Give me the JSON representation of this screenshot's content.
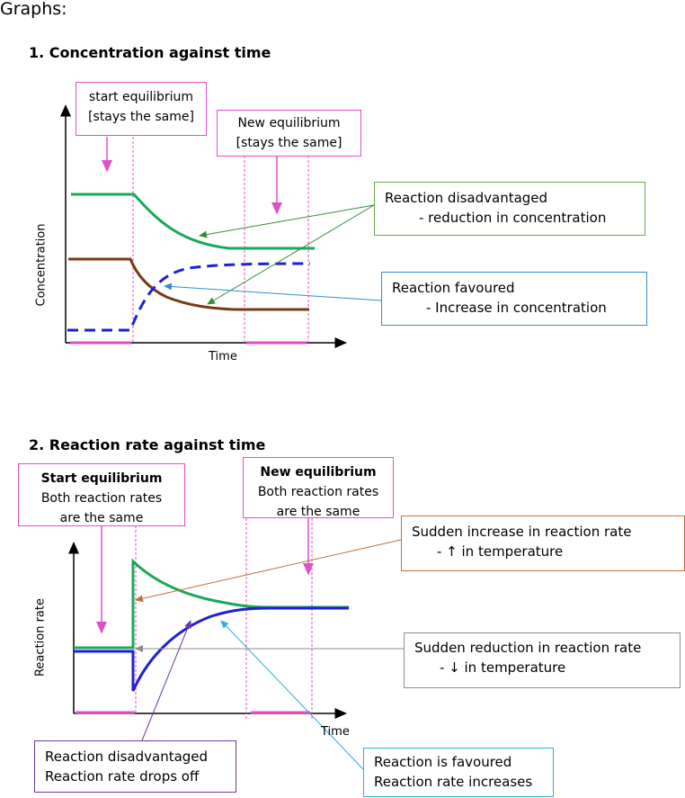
{
  "heading": "Graphs:",
  "graph1": {
    "title": "1. Concentration against time",
    "xlabel": "Time",
    "ylabel": "Concentration",
    "box_start": [
      "start equilibrium",
      "[stays the same]"
    ],
    "box_new": [
      "New equilibrium",
      "[stays the same]"
    ],
    "box_disadv": {
      "line1": "Reaction disadvantaged",
      "line2": "-    reduction in concentration"
    },
    "box_fav": {
      "line1": "Reaction favoured",
      "line2": "-    Increase in concentration"
    }
  },
  "graph2": {
    "title": "2. Reaction rate against time",
    "xlabel": "Time",
    "ylabel": "Reaction rate",
    "box_start": {
      "title": "Start equilibrium",
      "line1": "Both reaction rates",
      "line2": "are the same"
    },
    "box_new": {
      "title": "New equilibrium",
      "line1": "Both reaction rates",
      "line2": "are the same"
    },
    "box_increase": {
      "line1": "Sudden increase in reaction rate",
      "line2": "-    ↑ in temperature"
    },
    "box_reduction": {
      "line1": "Sudden reduction in reaction rate",
      "line2": "-    ↓ in temperature"
    },
    "box_disadv": {
      "line1": "Reaction disadvantaged",
      "line2": "Reaction rate drops off"
    },
    "box_fav": {
      "line1": "Reaction is favoured",
      "line2": "Reaction rate increases"
    }
  },
  "colors": {
    "magenta": "#e14fc8",
    "green": "#1aa85a",
    "brown": "#7a3a14",
    "blue": "#1f1fd6",
    "box_green": "#6fa84a",
    "box_blue": "#2f8fd0",
    "arrow_green": "#3a8a3a",
    "arrow_blue": "#2f8fd0",
    "box_orange": "#c0703a",
    "box_gray": "#8c8c8c",
    "box_purple": "#6a3aa0",
    "box_cyan": "#2fb0d8"
  }
}
